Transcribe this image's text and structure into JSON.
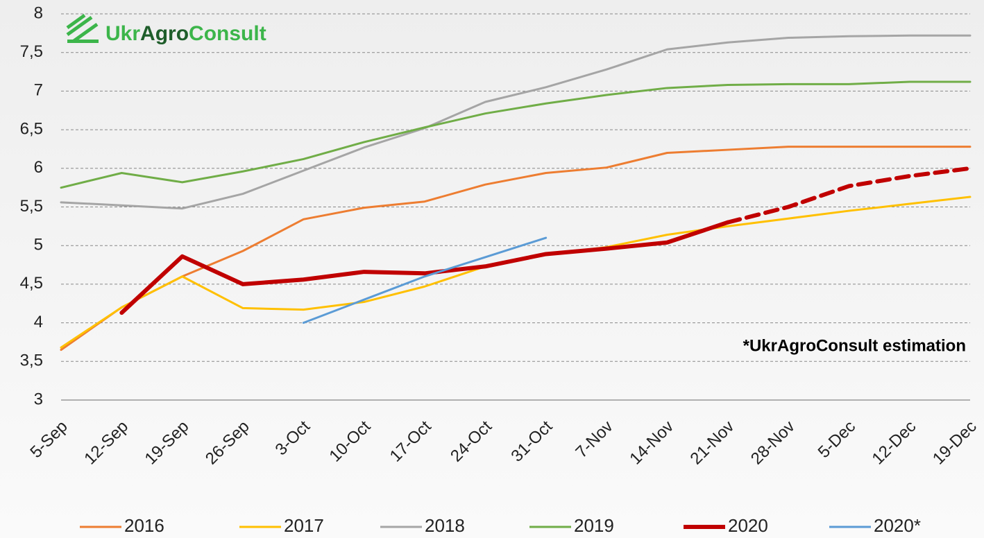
{
  "chart_data": {
    "type": "line",
    "logo": [
      "Ukr",
      "Agro",
      "Consult"
    ],
    "annotation": "*UkrAgroConsult estimation",
    "categories": [
      "5-Sep",
      "12-Sep",
      "19-Sep",
      "26-Sep",
      "3-Oct",
      "10-Oct",
      "17-Oct",
      "24-Oct",
      "31-Oct",
      "7-Nov",
      "14-Nov",
      "21-Nov",
      "28-Nov",
      "5-Dec",
      "12-Dec",
      "19-Dec"
    ],
    "ylim": [
      3,
      8
    ],
    "yticks": [
      3,
      {
        "value": 3.5,
        "label": "3,5"
      },
      4,
      {
        "value": 4.5,
        "label": "4,5"
      },
      5,
      {
        "value": 5.5,
        "label": "5,5"
      },
      6,
      {
        "value": 6.5,
        "label": "6,5"
      },
      7,
      {
        "value": 7.5,
        "label": "7,5"
      },
      8
    ],
    "grid": true,
    "legend": "bottom",
    "series": [
      {
        "name": "2016",
        "color": "#ed7d31",
        "width": 3,
        "values": [
          3.65,
          4.2,
          4.6,
          4.93,
          5.34,
          5.49,
          5.57,
          5.79,
          5.94,
          6.01,
          6.2,
          6.24,
          6.28,
          6.28,
          6.28,
          6.28
        ]
      },
      {
        "name": "2017",
        "color": "#ffc000",
        "width": 3,
        "values": [
          3.68,
          4.2,
          4.6,
          4.19,
          4.17,
          4.27,
          4.47,
          4.73,
          4.88,
          4.98,
          5.14,
          5.25,
          5.35,
          5.45,
          5.54,
          5.63
        ]
      },
      {
        "name": "2018",
        "color": "#a5a5a5",
        "width": 3,
        "values": [
          5.56,
          5.52,
          5.48,
          5.67,
          5.97,
          6.27,
          6.52,
          6.86,
          7.05,
          7.28,
          7.54,
          7.63,
          7.69,
          7.71,
          7.72,
          7.72
        ]
      },
      {
        "name": "2019",
        "color": "#70ad47",
        "width": 3,
        "values": [
          5.75,
          5.94,
          5.82,
          5.96,
          6.12,
          6.34,
          6.53,
          6.71,
          6.84,
          6.95,
          7.04,
          7.08,
          7.09,
          7.09,
          7.12,
          7.12
        ]
      },
      {
        "name": "2020",
        "color": "#c00000",
        "width": 6,
        "dash_from": 11,
        "values": [
          null,
          4.13,
          4.86,
          4.5,
          4.56,
          4.66,
          4.64,
          4.73,
          4.89,
          4.96,
          5.04,
          5.3,
          5.5,
          5.77,
          5.9,
          6.0
        ]
      },
      {
        "name": "2020*",
        "color": "#5b9bd5",
        "width": 3,
        "values": [
          null,
          null,
          null,
          null,
          4.0,
          4.3,
          4.6,
          4.85,
          5.1,
          null,
          null,
          null,
          null,
          null,
          null,
          null
        ]
      }
    ]
  }
}
